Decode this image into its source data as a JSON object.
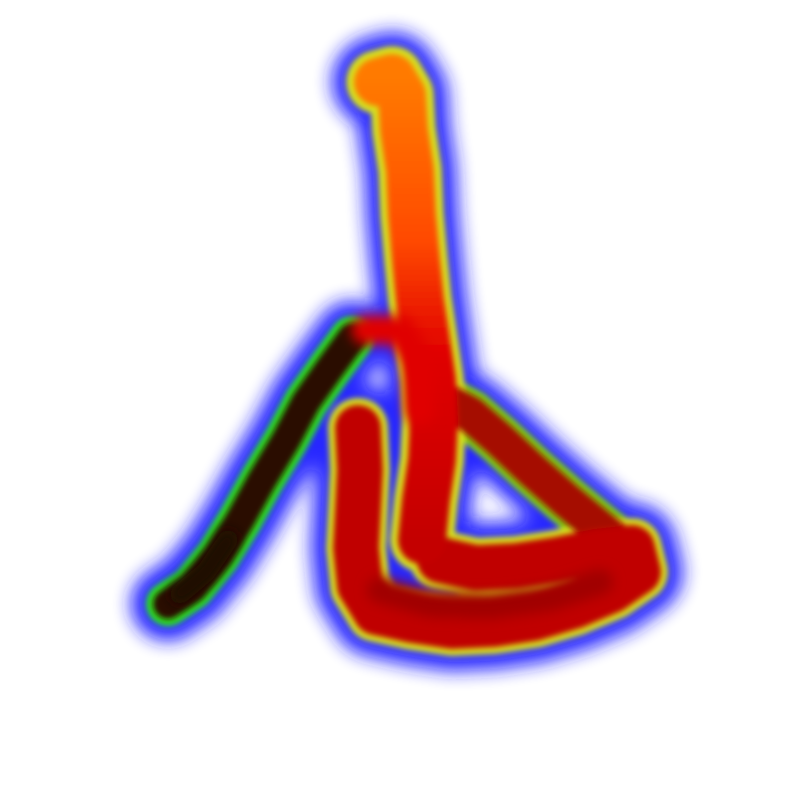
{
  "figure": {
    "kind": "heat-glow stroke drawing",
    "background": "#ffffff",
    "colors": {
      "glow": "#1f1fff",
      "rim_green": "#2fe51f",
      "rim_yellow": "#d7e21a",
      "hot_orange": "#ff5a00",
      "hot_red": "#dd0000",
      "core_dark_red": "#a00000",
      "core_black": "#1a0800"
    },
    "strokes": [
      {
        "name": "vertical-stroke",
        "heat": "high"
      },
      {
        "name": "left-diagonal-stroke",
        "heat": "low"
      },
      {
        "name": "right-diagonal-stroke",
        "heat": "medium"
      },
      {
        "name": "bottom-loop-stroke",
        "heat": "high"
      }
    ]
  }
}
